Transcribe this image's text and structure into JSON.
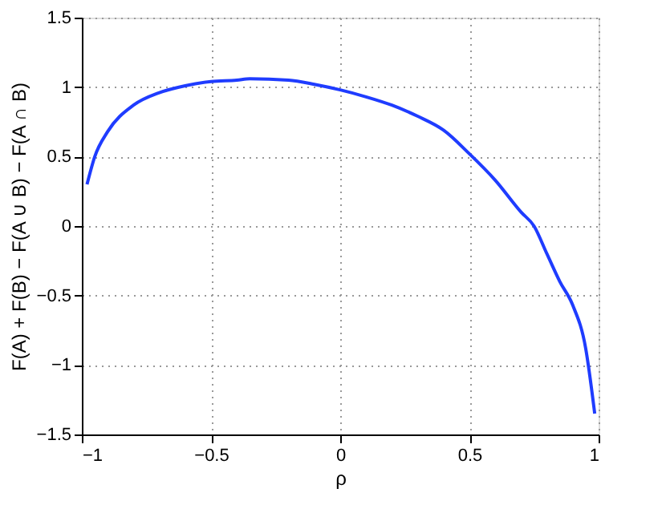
{
  "chart_data": {
    "type": "line",
    "xlabel": "ρ",
    "ylabel": "F(A) + F(B) − F(A ∪ B) − F(A ∩ B)",
    "x": [
      -0.98,
      -0.95,
      -0.9,
      -0.8,
      -0.7,
      -0.6,
      -0.5,
      -0.4,
      -0.35,
      -0.2,
      -0.1,
      0,
      0.1,
      0.2,
      0.3,
      0.4,
      0.5,
      0.6,
      0.7,
      0.75,
      0.8,
      0.85,
      0.9,
      0.95,
      0.985
    ],
    "series": [
      {
        "color": "#1f3cff",
        "values": [
          0.3,
          0.5,
          0.68,
          0.87,
          0.96,
          1.01,
          1.04,
          1.05,
          1.06,
          1.05,
          1.02,
          0.98,
          0.93,
          0.87,
          0.79,
          0.69,
          0.52,
          0.33,
          0.1,
          0,
          -0.2,
          -0.4,
          -0.57,
          -0.88,
          -1.35
        ]
      }
    ],
    "xlim": [
      -1,
      1
    ],
    "xticks": [
      -1,
      -0.5,
      0,
      0.5,
      1
    ],
    "ylim": [
      -1.5,
      1.5
    ],
    "yticks": [
      -1.5,
      -1,
      -0.5,
      0,
      0.5,
      1,
      1.5
    ],
    "grid": true,
    "line_style": "solid",
    "marker": "none"
  }
}
